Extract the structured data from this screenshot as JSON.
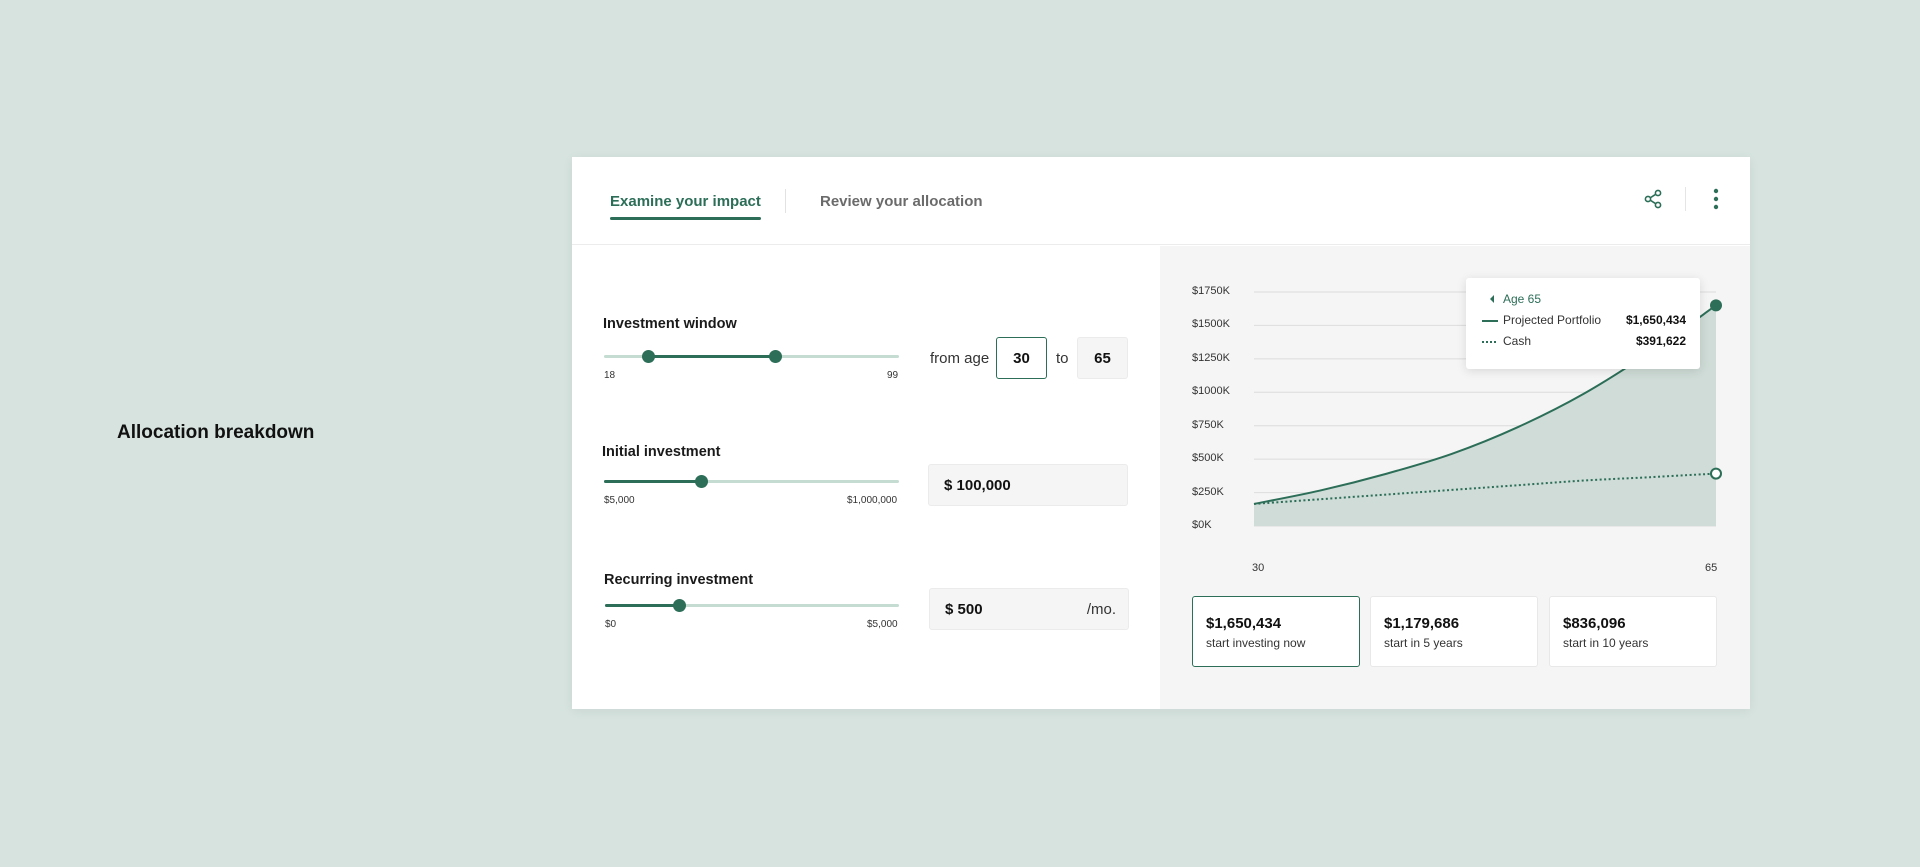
{
  "page": {
    "side_title": "Allocation breakdown"
  },
  "header": {
    "tabs": [
      {
        "label": "Examine your impact",
        "active": true
      },
      {
        "label": "Review your allocation",
        "active": false
      }
    ],
    "icons": [
      "share-icon",
      "more-vertical-icon"
    ]
  },
  "investment_window": {
    "label": "Investment window",
    "min_label": "18",
    "max_label": "99",
    "range_min": 18,
    "range_max": 99,
    "from_value": 30,
    "to_value": 65,
    "from_text": "from age",
    "to_text": "to",
    "from_input": "30",
    "to_input": "65"
  },
  "initial_investment": {
    "label": "Initial investment",
    "min_label": "$5,000",
    "max_label": "$1,000,000",
    "fraction": 0.33,
    "input_value": "$ 100,000"
  },
  "recurring_investment": {
    "label": "Recurring investment",
    "min_label": "$0",
    "max_label": "$5,000",
    "fraction": 0.25,
    "input_value": "$ 500",
    "suffix": "/mo."
  },
  "chart_data": {
    "type": "area",
    "x_start_label": "30",
    "x_end_label": "65",
    "x": [
      30,
      35,
      40,
      45,
      50,
      55,
      60,
      65
    ],
    "ylim": [
      0,
      1750
    ],
    "y_ticks": [
      "$0K",
      "$250K",
      "$500K",
      "$750K",
      "$1000K",
      "$1250K",
      "$1500K",
      "$1750K"
    ],
    "series": [
      {
        "name": "Projected Portfolio",
        "style": "solid-area",
        "values": [
          165,
          265,
          390,
          540,
          740,
          990,
          1300,
          1650
        ]
      },
      {
        "name": "Cash",
        "style": "dotted",
        "values": [
          165,
          200,
          235,
          270,
          305,
          340,
          365,
          392
        ]
      }
    ],
    "colors": {
      "accent": "#2c6e57",
      "area": "#cfdcd7",
      "grid": "#dcdcdc"
    }
  },
  "tooltip": {
    "title": "Age 65",
    "rows": [
      {
        "label": "Projected Portfolio",
        "value": "$1,650,434"
      },
      {
        "label": "Cash",
        "value": "$391,622"
      }
    ]
  },
  "scenarios": [
    {
      "value": "$1,650,434",
      "label": "start investing now",
      "selected": true
    },
    {
      "value": "$1,179,686",
      "label": "start in 5 years",
      "selected": false
    },
    {
      "value": "$836,096",
      "label": "start in 10 years",
      "selected": false
    }
  ]
}
